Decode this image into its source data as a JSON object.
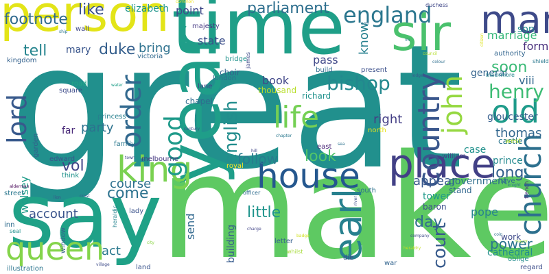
{
  "words": [
    {
      "text": "great",
      "color": "#21908d",
      "rotate": false
    },
    {
      "text": "make",
      "color": "#5ec962",
      "rotate": false
    },
    {
      "text": "say",
      "color": "#1fa187",
      "rotate": false
    },
    {
      "text": "time",
      "color": "#1f9f88",
      "rotate": false
    },
    {
      "text": "person",
      "color": "#e3e418",
      "rotate": false
    },
    {
      "text": "year",
      "color": "#1f9e89",
      "rotate": true
    },
    {
      "text": "sir",
      "color": "#4ac16d",
      "rotate": false
    },
    {
      "text": "place",
      "color": "#424086",
      "rotate": false
    },
    {
      "text": "man",
      "color": "#3e4a89",
      "rotate": false
    },
    {
      "text": "house",
      "color": "#25578e",
      "rotate": false
    },
    {
      "text": "earl",
      "color": "#27808e",
      "rotate": true
    },
    {
      "text": "king",
      "color": "#7ad151",
      "rotate": false
    },
    {
      "text": "queen",
      "color": "#84d44b",
      "rotate": false
    },
    {
      "text": "church",
      "color": "#2d708e",
      "rotate": true
    },
    {
      "text": "life",
      "color": "#75d054",
      "rotate": false
    },
    {
      "text": "country",
      "color": "#39568c",
      "rotate": true
    },
    {
      "text": "order",
      "color": "#31688e",
      "rotate": true
    },
    {
      "text": "john",
      "color": "#95d840",
      "rotate": true
    },
    {
      "text": "old",
      "color": "#1e9b8a",
      "rotate": false
    },
    {
      "text": "lord",
      "color": "#38598c",
      "rotate": true
    },
    {
      "text": "good",
      "color": "#1f9a8a",
      "rotate": true
    },
    {
      "text": "england",
      "color": "#2a768e",
      "rotate": false
    },
    {
      "text": "henry",
      "color": "#3dbc74",
      "rotate": false
    },
    {
      "text": "bishop",
      "color": "#23888e",
      "rotate": false
    },
    {
      "text": "english",
      "color": "#228d8d",
      "rotate": true
    },
    {
      "text": "court",
      "color": "#375a8c",
      "rotate": true
    },
    {
      "text": "parliament",
      "color": "#2e6f8e",
      "rotate": false
    },
    {
      "text": "footnote",
      "color": "#306a8e",
      "rotate": false
    },
    {
      "text": "duke",
      "color": "#355f8d",
      "rotate": false
    },
    {
      "text": "like",
      "color": "#3b518b",
      "rotate": false
    },
    {
      "text": "tell",
      "color": "#25848e",
      "rotate": false
    },
    {
      "text": "come",
      "color": "#2c728e",
      "rotate": false
    },
    {
      "text": "look",
      "color": "#52c569",
      "rotate": false
    },
    {
      "text": "day",
      "color": "#2f6c8e",
      "rotate": false
    },
    {
      "text": "little",
      "color": "#1f948c",
      "rotate": false
    },
    {
      "text": "follow",
      "color": "#287c8e",
      "rotate": false
    },
    {
      "text": "vol",
      "color": "#404387",
      "rotate": false
    },
    {
      "text": "party",
      "color": "#2c728e",
      "rotate": false
    },
    {
      "text": "long",
      "color": "#34608d",
      "rotate": false
    },
    {
      "text": "soon",
      "color": "#3aba76",
      "rotate": false
    },
    {
      "text": "know",
      "color": "#27808e",
      "rotate": true
    },
    {
      "text": "bring",
      "color": "#2d718e",
      "rotate": false
    },
    {
      "text": "right",
      "color": "#433e85",
      "rotate": false
    },
    {
      "text": "thomas",
      "color": "#31668e",
      "rotate": false
    },
    {
      "text": "power",
      "color": "#2b748e",
      "rotate": false
    },
    {
      "text": "appear",
      "color": "#38588c",
      "rotate": false
    },
    {
      "text": "account",
      "color": "#3a548c",
      "rotate": false
    },
    {
      "text": "book",
      "color": "#404688",
      "rotate": false
    },
    {
      "text": "course",
      "color": "#2d708e",
      "rotate": false
    },
    {
      "text": "pope",
      "color": "#26828e",
      "rotate": false
    },
    {
      "text": "act",
      "color": "#2a788e",
      "rotate": false
    },
    {
      "text": "send",
      "color": "#31688e",
      "rotate": true
    },
    {
      "text": "state",
      "color": "#3c4f8a",
      "rotate": false
    },
    {
      "text": "point",
      "color": "#3f4889",
      "rotate": false
    },
    {
      "text": "viii",
      "color": "#31688e",
      "rotate": false
    },
    {
      "text": "form",
      "color": "#472d7b",
      "rotate": false
    },
    {
      "text": "son",
      "color": "#228b8d",
      "rotate": false
    },
    {
      "text": "wolsey",
      "color": "#1e9c89",
      "rotate": true
    },
    {
      "text": "general",
      "color": "#33638d",
      "rotate": false
    },
    {
      "text": "government",
      "color": "#2e6e8e",
      "rotate": false
    },
    {
      "text": "marriage",
      "color": "#35b779",
      "rotate": false
    },
    {
      "text": "pass",
      "color": "#3f4788",
      "rotate": false
    },
    {
      "text": "gloucester",
      "color": "#355e8d",
      "rotate": false
    },
    {
      "text": "prince",
      "color": "#23898e",
      "rotate": false
    },
    {
      "text": "case",
      "color": "#21918c",
      "rotate": false
    },
    {
      "text": "far",
      "color": "#482878",
      "rotate": false
    },
    {
      "text": "mary",
      "color": "#39558c",
      "rotate": false
    },
    {
      "text": "elizabeth",
      "color": "#1f958b",
      "rotate": false
    },
    {
      "text": "building",
      "color": "#375b8d",
      "rotate": true
    },
    {
      "text": "castle",
      "color": "#2b758e",
      "rotate": false
    },
    {
      "text": "stand",
      "color": "#31668e",
      "rotate": false
    },
    {
      "text": "baron",
      "color": "#3c508b",
      "rotate": false
    },
    {
      "text": "tower",
      "color": "#1f998a",
      "rotate": false
    },
    {
      "text": "cathedral",
      "color": "#228d8d",
      "rotate": false
    },
    {
      "text": "work",
      "color": "#3e4989",
      "rotate": false
    },
    {
      "text": "richard",
      "color": "#21918c",
      "rotate": false
    },
    {
      "text": "choir",
      "color": "#33628d",
      "rotate": false
    },
    {
      "text": "london",
      "color": "#2e6d8e",
      "rotate": false
    },
    {
      "text": "lane",
      "color": "#414487",
      "rotate": false
    },
    {
      "text": "chapel",
      "color": "#2f6b8e",
      "rotate": false
    },
    {
      "text": "thousand",
      "color": "#b8de29",
      "rotate": false
    },
    {
      "text": "bridge",
      "color": "#20928c",
      "rotate": false
    },
    {
      "text": "street",
      "color": "#2a778e",
      "rotate": false
    },
    {
      "text": "square",
      "color": "#3e4c8a",
      "rotate": false
    },
    {
      "text": "road",
      "color": "#21a685",
      "rotate": false
    },
    {
      "text": "princess",
      "color": "#27808e",
      "rotate": false
    },
    {
      "text": "edward",
      "color": "#3b528b",
      "rotate": false
    },
    {
      "text": "family",
      "color": "#2a788e",
      "rotate": false
    },
    {
      "text": "melbourne",
      "color": "#453781",
      "rotate": false
    },
    {
      "text": "william",
      "color": "#433d84",
      "rotate": false
    },
    {
      "text": "present",
      "color": "#3c508b",
      "rotate": false
    },
    {
      "text": "build",
      "color": "#2f6b8e",
      "rotate": false
    },
    {
      "text": "authority",
      "color": "#32658e",
      "rotate": false
    },
    {
      "text": "majesty",
      "color": "#453882",
      "rotate": false
    },
    {
      "text": "wall",
      "color": "#3f4889",
      "rotate": false
    },
    {
      "text": "kingdom",
      "color": "#34618d",
      "rotate": false
    },
    {
      "text": "victoria",
      "color": "#30698e",
      "rotate": false
    },
    {
      "text": "east",
      "color": "#482576",
      "rotate": false
    },
    {
      "text": "north",
      "color": "#e8e419",
      "rotate": false
    },
    {
      "text": "south",
      "color": "#2c718e",
      "rotate": false
    },
    {
      "text": "west",
      "color": "#addc30",
      "rotate": false
    },
    {
      "text": "have",
      "color": "#2e6e8e",
      "rotate": false
    },
    {
      "text": "lady",
      "color": "#3b528b",
      "rotate": false
    },
    {
      "text": "letter",
      "color": "#355f8d",
      "rotate": false
    },
    {
      "text": "land",
      "color": "#3a548c",
      "rotate": false
    },
    {
      "text": "war",
      "color": "#32648e",
      "rotate": false
    },
    {
      "text": "die",
      "color": "#3d4e8a",
      "rotate": false
    },
    {
      "text": "illustration",
      "color": "#2b748e",
      "rotate": false
    },
    {
      "text": "regard",
      "color": "#3d4d8a",
      "rotate": false
    },
    {
      "text": "oblige",
      "color": "#228c8d",
      "rotate": false
    },
    {
      "text": "inn",
      "color": "#2f6c8e",
      "rotate": false
    },
    {
      "text": "window",
      "color": "#34608d",
      "rotate": true
    },
    {
      "text": "garden",
      "color": "#33628d",
      "rotate": true
    },
    {
      "text": "think",
      "color": "#20928c",
      "rotate": false
    },
    {
      "text": "royal",
      "color": "#fde725",
      "rotate": false
    },
    {
      "text": "seal",
      "color": "#21918c",
      "rotate": false
    },
    {
      "text": "heraldic",
      "color": "#25838e",
      "rotate": true
    },
    {
      "text": "james",
      "color": "#3e4a89",
      "rotate": true
    },
    {
      "text": "duchess",
      "color": "#3f4788",
      "rotate": false
    },
    {
      "text": "shield",
      "color": "#2a788e",
      "rotate": false
    },
    {
      "text": "blackmore",
      "color": "#24868e",
      "rotate": false
    },
    {
      "text": "council",
      "color": "#b5de2b",
      "rotate": false
    },
    {
      "text": "french",
      "color": "#482979",
      "rotate": true
    },
    {
      "text": "knight",
      "color": "#2c718e",
      "rotate": false
    },
    {
      "text": "alderman",
      "color": "#440154",
      "rotate": false
    },
    {
      "text": "lion",
      "color": "#3b528b",
      "rotate": false
    },
    {
      "text": "crest",
      "color": "#39568c",
      "rotate": false
    },
    {
      "text": "officer",
      "color": "#2f6c8e",
      "rotate": false
    },
    {
      "text": "company",
      "color": "#3e4b89",
      "rotate": false
    },
    {
      "text": "charge",
      "color": "#414487",
      "rotate": false
    },
    {
      "text": "heraldry",
      "color": "#c2df23",
      "rotate": false
    },
    {
      "text": "whilst",
      "color": "#a5db36",
      "rotate": false
    },
    {
      "text": "badge",
      "color": "#d0e11c",
      "rotate": false
    },
    {
      "text": "mayor",
      "color": "#9dd93b",
      "rotate": false
    },
    {
      "text": "city",
      "color": "#8bd646",
      "rotate": false
    },
    {
      "text": "village",
      "color": "#3e4c8a",
      "rotate": false
    },
    {
      "text": "common",
      "color": "#f1e51d",
      "rotate": false
    },
    {
      "text": "chapter",
      "color": "#2a788e",
      "rotate": false
    },
    {
      "text": "century",
      "color": "#3e4989",
      "rotate": false
    },
    {
      "text": "town",
      "color": "#3f4788",
      "rotate": false
    },
    {
      "text": "hill",
      "color": "#404588",
      "rotate": false
    },
    {
      "text": "sea",
      "color": "#2c728e",
      "rotate": false
    },
    {
      "text": "ship",
      "color": "#2b758e",
      "rotate": false
    },
    {
      "text": "arm",
      "color": "#2d718e",
      "rotate": false
    },
    {
      "text": "water",
      "color": "#1f9f88",
      "rotate": false
    },
    {
      "text": "colour",
      "color": "#2e6f8e",
      "rotate": false
    },
    {
      "text": "vii",
      "color": "#2c738e",
      "rotate": false
    },
    {
      "text": "citizen",
      "color": "#dde318",
      "rotate": true
    },
    {
      "text": "coin",
      "color": "#2d708e",
      "rotate": false
    },
    {
      "text": "lodge",
      "color": "#38598c",
      "rotate": false
    },
    {
      "text": "river",
      "color": "#3d4e8a",
      "rotate": true
    }
  ]
}
